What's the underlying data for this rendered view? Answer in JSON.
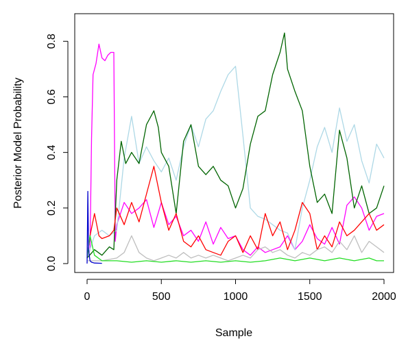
{
  "chart_data": {
    "type": "line",
    "title": "",
    "xlabel": "Sample",
    "ylabel": "Posterior Model Probability",
    "xlim": [
      0,
      2000
    ],
    "ylim": [
      0,
      0.85
    ],
    "x_ticks": [
      0,
      500,
      1000,
      1500,
      2000
    ],
    "x_tick_labels": [
      "0",
      "500",
      "1000",
      "1500",
      "2000"
    ],
    "y_ticks": [
      0.0,
      0.2,
      0.4,
      0.6,
      0.8
    ],
    "y_tick_labels": [
      "0.0",
      "0.2",
      "0.4",
      "0.6",
      "0.8"
    ],
    "grid": false,
    "legend": "none",
    "series": [
      {
        "color": "#ff00ff",
        "x": [
          0,
          20,
          30,
          40,
          60,
          80,
          100,
          120,
          140,
          160,
          180,
          190,
          200,
          250,
          300,
          350,
          400,
          450,
          500,
          550,
          600,
          650,
          700,
          750,
          800,
          850,
          900,
          950,
          1000,
          1050,
          1100,
          1150,
          1200,
          1250,
          1300,
          1350,
          1400,
          1450,
          1500,
          1550,
          1600,
          1650,
          1700,
          1750,
          1800,
          1850,
          1900,
          1950,
          2000
        ],
        "y": [
          0.02,
          0.05,
          0.45,
          0.68,
          0.72,
          0.79,
          0.74,
          0.73,
          0.75,
          0.76,
          0.76,
          0.08,
          0.14,
          0.22,
          0.18,
          0.2,
          0.23,
          0.13,
          0.22,
          0.14,
          0.17,
          0.1,
          0.12,
          0.08,
          0.15,
          0.07,
          0.13,
          0.09,
          0.1,
          0.05,
          0.03,
          0.06,
          0.04,
          0.05,
          0.06,
          0.1,
          0.05,
          0.08,
          0.14,
          0.09,
          0.07,
          0.13,
          0.07,
          0.21,
          0.24,
          0.2,
          0.12,
          0.17,
          0.18
        ]
      },
      {
        "color": "#add8e6",
        "x": [
          0,
          50,
          100,
          150,
          200,
          250,
          300,
          350,
          400,
          450,
          500,
          550,
          600,
          650,
          700,
          750,
          800,
          850,
          900,
          950,
          1000,
          1050,
          1100,
          1150,
          1200,
          1250,
          1300,
          1350,
          1400,
          1450,
          1500,
          1550,
          1600,
          1650,
          1700,
          1750,
          1800,
          1850,
          1900,
          1950,
          2000
        ],
        "y": [
          0.02,
          0.1,
          0.12,
          0.1,
          0.12,
          0.38,
          0.53,
          0.36,
          0.42,
          0.37,
          0.33,
          0.38,
          0.3,
          0.42,
          0.5,
          0.42,
          0.52,
          0.55,
          0.62,
          0.68,
          0.71,
          0.46,
          0.2,
          0.17,
          0.16,
          0.14,
          0.12,
          0.11,
          0.05,
          0.2,
          0.3,
          0.42,
          0.49,
          0.4,
          0.56,
          0.44,
          0.5,
          0.37,
          0.29,
          0.43,
          0.38
        ]
      },
      {
        "color": "#006400",
        "x": [
          0,
          50,
          100,
          150,
          180,
          200,
          230,
          260,
          300,
          350,
          400,
          450,
          480,
          500,
          550,
          600,
          650,
          700,
          750,
          800,
          850,
          900,
          950,
          1000,
          1050,
          1100,
          1150,
          1200,
          1250,
          1300,
          1330,
          1350,
          1400,
          1450,
          1500,
          1550,
          1600,
          1650,
          1700,
          1750,
          1800,
          1850,
          1900,
          1950,
          2000
        ],
        "y": [
          0.02,
          0.05,
          0.03,
          0.06,
          0.05,
          0.3,
          0.44,
          0.36,
          0.4,
          0.36,
          0.5,
          0.55,
          0.49,
          0.4,
          0.35,
          0.18,
          0.44,
          0.5,
          0.35,
          0.32,
          0.35,
          0.3,
          0.28,
          0.2,
          0.27,
          0.43,
          0.53,
          0.55,
          0.68,
          0.76,
          0.83,
          0.7,
          0.62,
          0.55,
          0.35,
          0.22,
          0.25,
          0.18,
          0.48,
          0.38,
          0.2,
          0.28,
          0.18,
          0.2,
          0.28
        ]
      },
      {
        "color": "#ff0000",
        "x": [
          0,
          20,
          50,
          80,
          100,
          150,
          180,
          200,
          250,
          300,
          350,
          400,
          450,
          500,
          550,
          600,
          650,
          700,
          750,
          800,
          850,
          900,
          950,
          1000,
          1050,
          1100,
          1150,
          1200,
          1250,
          1300,
          1350,
          1400,
          1450,
          1500,
          1550,
          1600,
          1650,
          1700,
          1750,
          1800,
          1850,
          1900,
          1950,
          2000
        ],
        "y": [
          0.02,
          0.1,
          0.18,
          0.1,
          0.09,
          0.1,
          0.12,
          0.2,
          0.14,
          0.22,
          0.15,
          0.25,
          0.35,
          0.22,
          0.12,
          0.18,
          0.08,
          0.06,
          0.1,
          0.05,
          0.04,
          0.03,
          0.08,
          0.1,
          0.04,
          0.1,
          0.05,
          0.18,
          0.1,
          0.15,
          0.05,
          0.12,
          0.22,
          0.18,
          0.05,
          0.1,
          0.06,
          0.15,
          0.1,
          0.12,
          0.15,
          0.18,
          0.12,
          0.14
        ]
      },
      {
        "color": "#bebebe",
        "x": [
          0,
          100,
          200,
          250,
          300,
          350,
          400,
          450,
          500,
          550,
          600,
          650,
          700,
          750,
          800,
          850,
          900,
          950,
          1000,
          1050,
          1100,
          1150,
          1200,
          1250,
          1300,
          1350,
          1400,
          1450,
          1500,
          1550,
          1600,
          1650,
          1700,
          1750,
          1800,
          1850,
          1900,
          1950,
          2000
        ],
        "y": [
          0.01,
          0.01,
          0.02,
          0.04,
          0.1,
          0.04,
          0.02,
          0.01,
          0.02,
          0.03,
          0.02,
          0.04,
          0.02,
          0.03,
          0.02,
          0.03,
          0.02,
          0.01,
          0.02,
          0.03,
          0.02,
          0.05,
          0.06,
          0.04,
          0.05,
          0.03,
          0.02,
          0.04,
          0.03,
          0.05,
          0.06,
          0.04,
          0.08,
          0.05,
          0.1,
          0.04,
          0.08,
          0.06,
          0.04
        ]
      },
      {
        "color": "#22dd22",
        "x": [
          0,
          20,
          50,
          100,
          200,
          300,
          400,
          500,
          600,
          700,
          800,
          900,
          1000,
          1100,
          1200,
          1300,
          1400,
          1500,
          1600,
          1700,
          1800,
          1900,
          1950,
          2000
        ],
        "y": [
          0.02,
          0.1,
          0.03,
          0.01,
          0.01,
          0.005,
          0.01,
          0.005,
          0.01,
          0.005,
          0.01,
          0.005,
          0.01,
          0.005,
          0.01,
          0.02,
          0.01,
          0.02,
          0.01,
          0.02,
          0.01,
          0.02,
          0.01,
          0.01
        ]
      },
      {
        "color": "#0000cc",
        "x": [
          0,
          5,
          10,
          15,
          20,
          30,
          50,
          100
        ],
        "y": [
          0.0,
          0.26,
          0.05,
          0.03,
          0.01,
          0.005,
          0.002,
          0.001
        ]
      }
    ]
  }
}
